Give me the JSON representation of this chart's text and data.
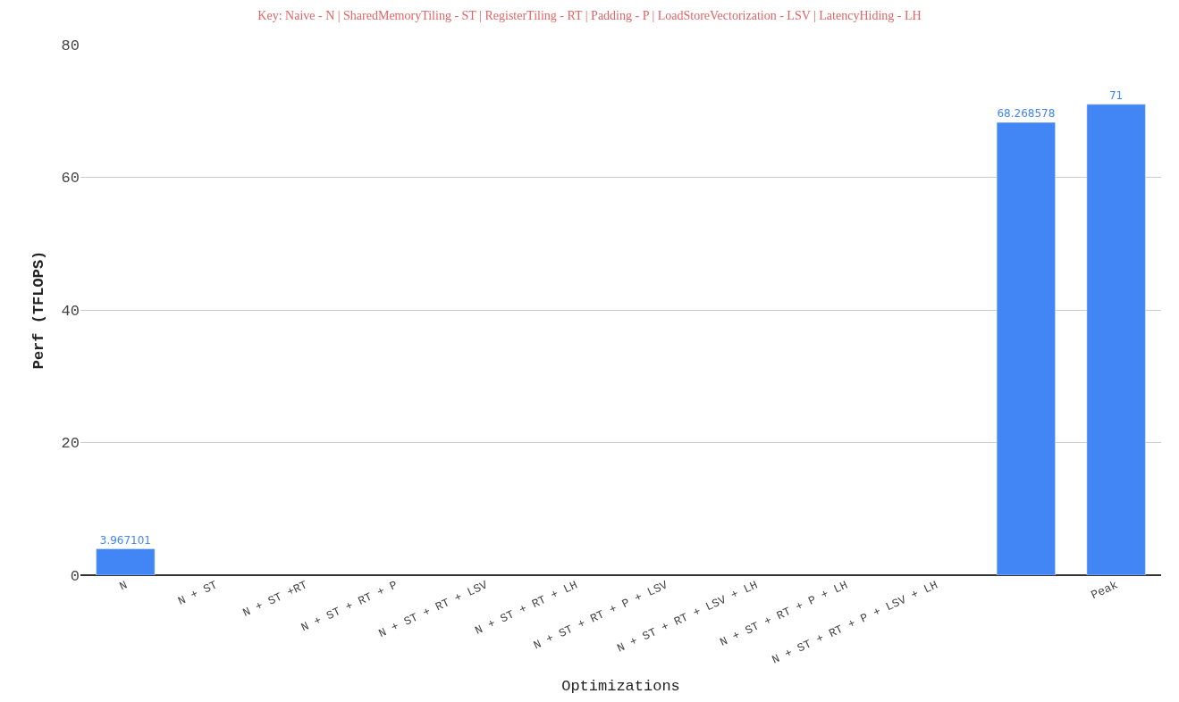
{
  "chart_data": {
    "type": "bar",
    "title": "Key: Naive - N | SharedMemoryTiling - ST | RegisterTiling - RT | Padding - P | LoadStoreVectorization - LSV | LatencyHiding - LH",
    "xlabel": "Optimizations",
    "ylabel": "Perf (TFLOPS)",
    "categories": [
      "N",
      "N + ST",
      "N + ST +RT",
      "N + ST + RT + P",
      "N + ST + RT + LSV",
      "N + ST + RT + LH",
      "N + ST + RT + P + LSV",
      "N + ST + RT + LSV + LH",
      "N + ST + RT + P + LH",
      "N + ST + RT + P + LSV + LH",
      null,
      "Peak"
    ],
    "values": [
      3.967101,
      null,
      null,
      null,
      null,
      null,
      null,
      null,
      null,
      null,
      68.268578,
      71
    ],
    "color": "#4285f4",
    "ylim": [
      0,
      80
    ],
    "yticks": [
      0,
      20,
      40,
      60,
      80
    ],
    "grid": "y",
    "data_labels": true
  }
}
